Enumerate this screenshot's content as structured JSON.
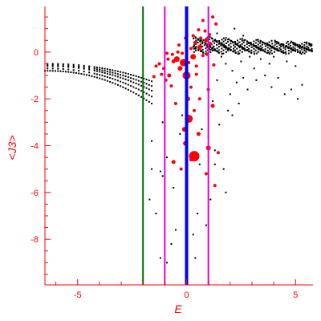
{
  "chart_data": {
    "type": "scatter",
    "title": "",
    "xlabel": "E",
    "ylabel": "<J3>",
    "xlim": [
      -6.5,
      5.8
    ],
    "ylim": [
      -9.95,
      1.95
    ],
    "x_ticks": [
      -5,
      0,
      5
    ],
    "y_ticks": [
      0,
      -2,
      -4,
      -6,
      -8
    ],
    "grid": false,
    "colors": {
      "axis": "#ff0000",
      "black_points": "#000000",
      "red_points": "#ff0000",
      "line_green": "#007000",
      "line_magenta": "#e000e0",
      "line_blue": "#0000ff"
    },
    "vertical_lines": [
      {
        "x": -2.0,
        "color": "#007000"
      },
      {
        "x": -1.0,
        "color": "#e000e0"
      },
      {
        "x": 1.0,
        "color": "#e000e0"
      },
      {
        "x": 0.0,
        "color": "#0000ff"
      }
    ],
    "black_branches": [
      {
        "y_start": -0.8,
        "y_end": -2.2
      },
      {
        "y_start": -0.7,
        "y_end": -1.9
      },
      {
        "y_start": -0.6,
        "y_end": -1.65
      },
      {
        "y_start": -0.55,
        "y_end": -1.45
      },
      {
        "y_start": -0.5,
        "y_end": -1.25
      }
    ],
    "black_band": {
      "x_range": [
        0.3,
        5.8
      ],
      "y_top": 0.6,
      "y_bottom": 0.0
    },
    "black_sparse": [
      [
        -1.6,
        -5.0
      ],
      [
        -1.2,
        -5.1
      ],
      [
        -1.1,
        -5.3
      ],
      [
        -1.6,
        -3.8
      ],
      [
        -1.1,
        -3.0
      ],
      [
        -0.9,
        -4.5
      ],
      [
        -0.6,
        -5.8
      ],
      [
        -0.5,
        -7.6
      ],
      [
        -0.7,
        -8.2
      ],
      [
        -1.2,
        -8.8
      ],
      [
        -0.9,
        -9.0
      ],
      [
        0.4,
        -8.8
      ],
      [
        0.3,
        -7.8
      ],
      [
        0.5,
        -6.9
      ],
      [
        1.1,
        -6.3
      ],
      [
        1.8,
        -6.0
      ],
      [
        1.7,
        -5.0
      ],
      [
        1.3,
        -4.2
      ],
      [
        1.0,
        -3.6
      ],
      [
        1.5,
        -3.1
      ],
      [
        2.1,
        -2.7
      ],
      [
        2.4,
        -2.2
      ],
      [
        2.0,
        -1.8
      ],
      [
        2.8,
        -1.6
      ],
      [
        3.2,
        -1.2
      ],
      [
        3.6,
        -1.0
      ],
      [
        4.2,
        -1.1
      ],
      [
        4.8,
        -1.6
      ],
      [
        5.1,
        -2.0
      ],
      [
        5.3,
        -1.4
      ],
      [
        4.5,
        -1.8
      ],
      [
        3.9,
        -1.5
      ],
      [
        2.6,
        -1.1
      ],
      [
        2.1,
        -0.8
      ],
      [
        1.8,
        -0.5
      ],
      [
        2.5,
        -0.4
      ],
      [
        3.1,
        -0.7
      ],
      [
        3.8,
        -0.5
      ],
      [
        1.4,
        -1.2
      ],
      [
        1.2,
        -2.1
      ],
      [
        1.9,
        -2.5
      ],
      [
        2.3,
        -1.3
      ],
      [
        -0.3,
        -3.5
      ],
      [
        0.6,
        -4.8
      ],
      [
        -0.2,
        -2.7
      ],
      [
        0.7,
        -3.3
      ],
      [
        -1.7,
        -6.3
      ],
      [
        -1.4,
        -6.9
      ],
      [
        0.9,
        -7.4
      ],
      [
        1.3,
        -4.8
      ],
      [
        2.9,
        -0.2
      ],
      [
        3.4,
        -0.3
      ],
      [
        4.0,
        -0.2
      ],
      [
        4.6,
        -0.4
      ],
      [
        5.0,
        -0.6
      ],
      [
        1.6,
        -0.2
      ],
      [
        1.1,
        0.1
      ],
      [
        1.4,
        0.8
      ],
      [
        2.2,
        1.0
      ],
      [
        2.6,
        0.7
      ]
    ],
    "red_points": [
      [
        0.35,
        -4.45,
        13
      ],
      [
        0.1,
        -2.85,
        10
      ],
      [
        0.0,
        -1.0,
        10
      ],
      [
        -0.15,
        -0.45,
        9
      ],
      [
        -0.45,
        -0.3,
        7
      ],
      [
        0.3,
        -0.2,
        7
      ],
      [
        0.6,
        0.2,
        6
      ],
      [
        -0.3,
        -0.7,
        6
      ],
      [
        0.05,
        -2.0,
        6
      ],
      [
        -0.1,
        -3.3,
        6
      ],
      [
        -0.05,
        -3.9,
        6
      ],
      [
        1.0,
        -4.1,
        6
      ],
      [
        0.55,
        -3.5,
        5
      ],
      [
        1.2,
        -2.3,
        5
      ],
      [
        0.9,
        0.5,
        5
      ],
      [
        -0.8,
        -1.0,
        5
      ],
      [
        -0.6,
        -0.4,
        5
      ],
      [
        -0.95,
        -1.2,
        4
      ],
      [
        -1.05,
        -0.7,
        4
      ],
      [
        -1.25,
        -0.5,
        4
      ],
      [
        0.45,
        -0.6,
        4
      ],
      [
        0.75,
        -0.15,
        4
      ],
      [
        0.4,
        0.4,
        5
      ],
      [
        0.2,
        0.15,
        4
      ],
      [
        -0.2,
        -0.05,
        4
      ],
      [
        -0.4,
        0.0,
        4
      ],
      [
        -0.65,
        -0.1,
        4
      ],
      [
        0.95,
        -0.1,
        4
      ],
      [
        1.1,
        0.35,
        4
      ],
      [
        0.65,
        0.6,
        4
      ],
      [
        0.55,
        0.95,
        4
      ],
      [
        0.85,
        0.9,
        4
      ],
      [
        1.05,
        0.75,
        4
      ],
      [
        0.3,
        0.7,
        4
      ],
      [
        0.0,
        0.3,
        4
      ],
      [
        0.1,
        -0.45,
        4
      ],
      [
        -0.85,
        -0.3,
        4
      ],
      [
        -1.15,
        -0.95,
        4
      ],
      [
        -0.7,
        -1.45,
        4
      ],
      [
        -0.5,
        -2.2,
        4
      ],
      [
        0.2,
        -1.5,
        4
      ],
      [
        0.35,
        -2.5,
        4
      ],
      [
        0.6,
        -2.0,
        4
      ],
      [
        -0.6,
        -4.7,
        5
      ],
      [
        0.9,
        -5.2,
        4
      ],
      [
        1.3,
        -5.7,
        4
      ],
      [
        1.45,
        -4.3,
        4
      ],
      [
        0.2,
        -4.6,
        4
      ],
      [
        -0.25,
        -5.0,
        4
      ],
      [
        1.0,
        -1.6,
        4
      ],
      [
        1.35,
        1.2,
        4
      ],
      [
        0.75,
        1.35,
        4
      ],
      [
        1.2,
        1.5,
        4
      ],
      [
        -1.5,
        -1.05,
        4
      ],
      [
        -1.4,
        -0.6,
        4
      ],
      [
        -0.35,
        0.3,
        4
      ],
      [
        -0.05,
        0.6,
        4
      ],
      [
        0.45,
        -0.95,
        4
      ],
      [
        -0.9,
        -0.05,
        4
      ],
      [
        1.25,
        -0.55,
        4
      ]
    ]
  }
}
